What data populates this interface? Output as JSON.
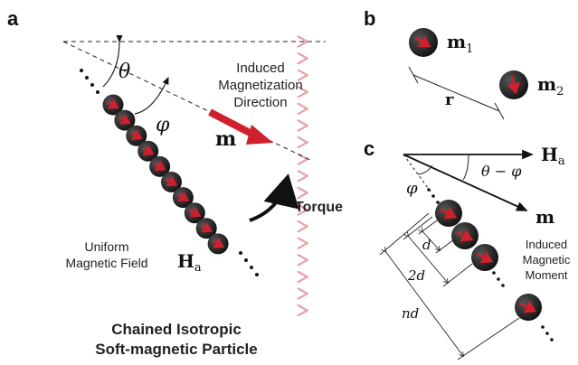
{
  "panel_a": {
    "label": "a",
    "theta": "θ",
    "phi": "φ",
    "induced_line1": "Induced",
    "induced_line2": "Magnetization",
    "induced_line3": "Direction",
    "m_label": "m",
    "torque": "Torque",
    "uniform_line1": "Uniform",
    "uniform_line2": "Magnetic Field",
    "h_label": "H",
    "h_sub": "a",
    "caption_line1": "Chained Isotropic",
    "caption_line2": "Soft-magnetic Particle"
  },
  "panel_b": {
    "label": "b",
    "m1": "m",
    "m1_sub": "1",
    "m2": "m",
    "m2_sub": "2",
    "r_label": "r"
  },
  "panel_c": {
    "label": "c",
    "h_label": "H",
    "h_sub": "a",
    "theta_phi": "θ − φ",
    "phi": "φ",
    "m_label": "m",
    "induced_line1": "Induced",
    "induced_line2": "Magnetic",
    "induced_line3": "Moment",
    "d": "d",
    "two_d": "2d",
    "nd": "nd"
  },
  "colors": {
    "field_blue": "#9ec3e6",
    "field_red": "#e8a0a8",
    "arrow_red": "#d0202e",
    "particle": "#2a2a2a"
  }
}
